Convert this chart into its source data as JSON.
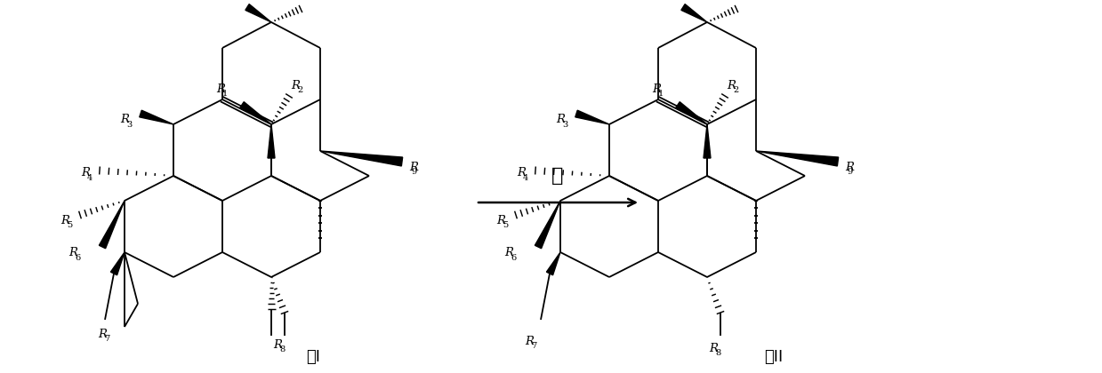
{
  "background": "#ffffff",
  "lw": 1.3,
  "arrow_label": "酸",
  "label_I": "式I",
  "label_II": "式II"
}
